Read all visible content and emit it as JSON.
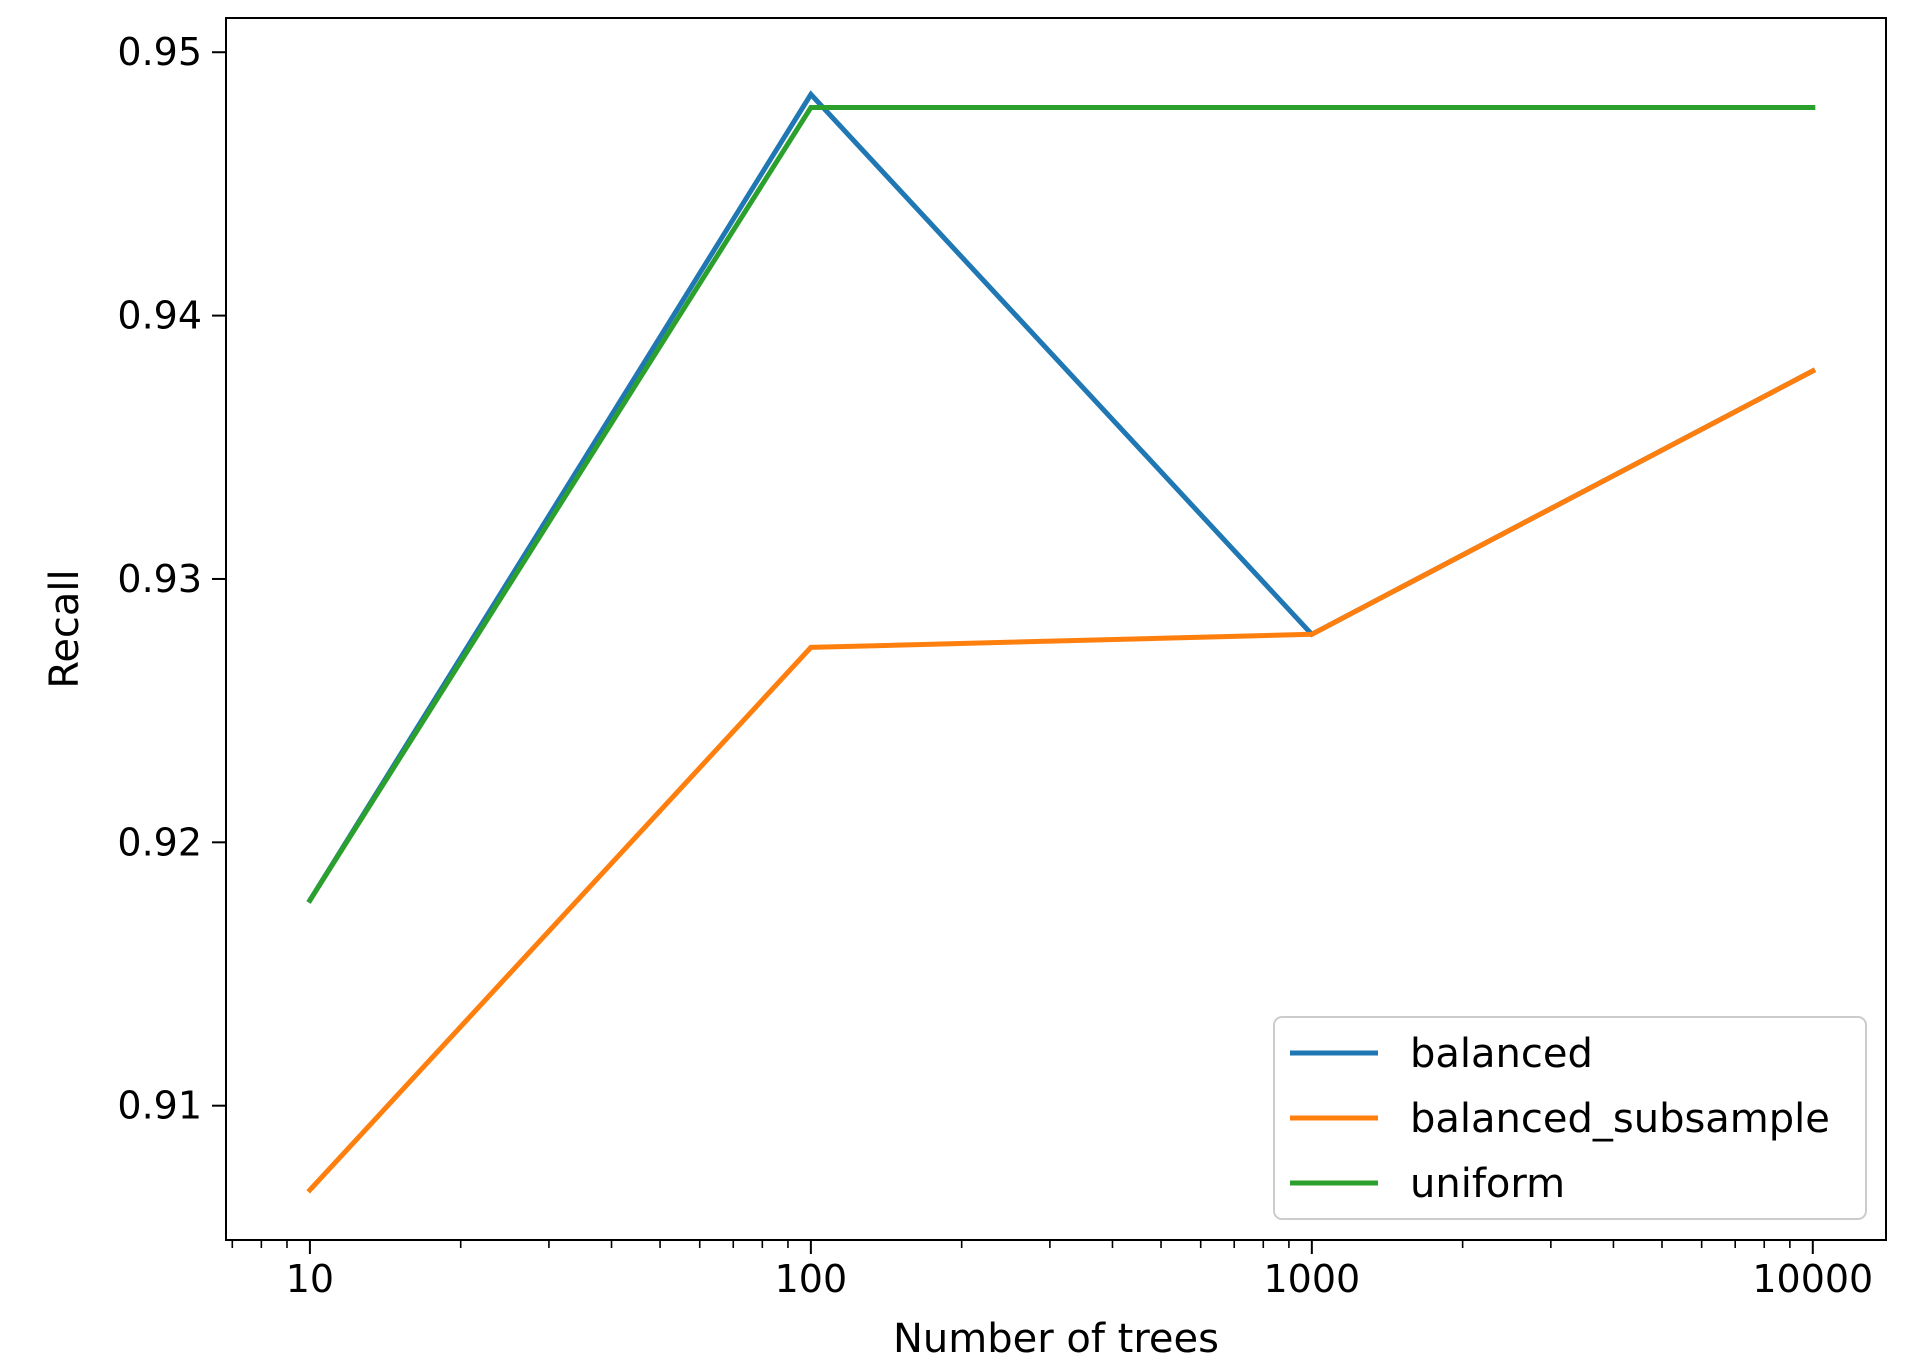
{
  "chart_data": {
    "type": "line",
    "title": "",
    "xlabel": "Number of trees",
    "ylabel": "Recall",
    "x": [
      10,
      100,
      1000,
      10000
    ],
    "xscale": "log",
    "xlim": [
      6.8,
      14000
    ],
    "ylim": [
      0.9049,
      0.9513
    ],
    "xticks": [
      {
        "value": 10,
        "label": "10"
      },
      {
        "value": 100,
        "label": "100"
      },
      {
        "value": 1000,
        "label": "1000"
      },
      {
        "value": 10000,
        "label": "10000"
      }
    ],
    "yticks": [
      {
        "value": 0.91,
        "label": "0.91"
      },
      {
        "value": 0.92,
        "label": "0.92"
      },
      {
        "value": 0.93,
        "label": "0.93"
      },
      {
        "value": 0.94,
        "label": "0.94"
      },
      {
        "value": 0.95,
        "label": "0.95"
      }
    ],
    "grid": false,
    "legend_position": "bottom-right",
    "series": [
      {
        "name": "balanced",
        "color": "#1f77b4",
        "values": [
          0.9178,
          0.9484,
          0.9279,
          0.9379
        ]
      },
      {
        "name": "balanced_subsample",
        "color": "#ff7f0e",
        "values": [
          0.9068,
          0.9274,
          0.9279,
          0.9379
        ]
      },
      {
        "name": "uniform",
        "color": "#2ca02c",
        "values": [
          0.9178,
          0.9479,
          0.9479,
          0.9479
        ]
      }
    ]
  }
}
